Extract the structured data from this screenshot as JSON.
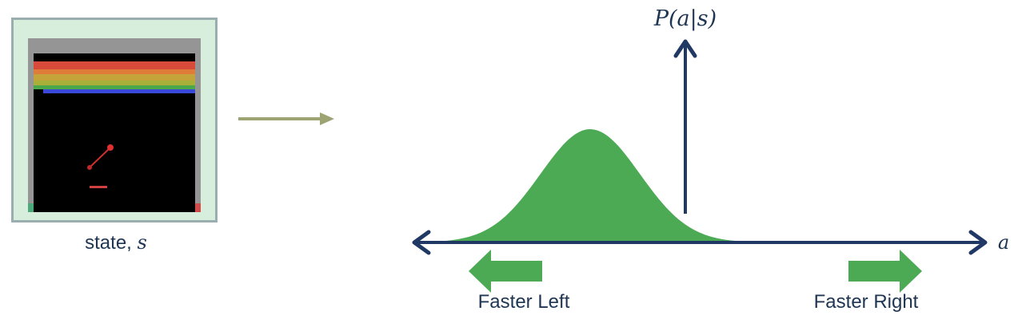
{
  "state": {
    "label": "state,",
    "symbol": "s"
  },
  "plot": {
    "y_axis_label": "P(a|s)",
    "x_axis_label": "a",
    "left_arrow_label": "Faster Left",
    "right_arrow_label": "Faster Right"
  },
  "colors": {
    "axis": "#1f3864",
    "distribution": "#4caa55",
    "arrow_green": "#4caa55",
    "connector_arrow": "#9ea374",
    "text": "#1f3552"
  },
  "game_screen": {
    "brick_colors": [
      "#d84a3a",
      "#e07c3a",
      "#c4a43a",
      "#a8b03a",
      "#4aa84a",
      "#3a4ad8"
    ]
  }
}
